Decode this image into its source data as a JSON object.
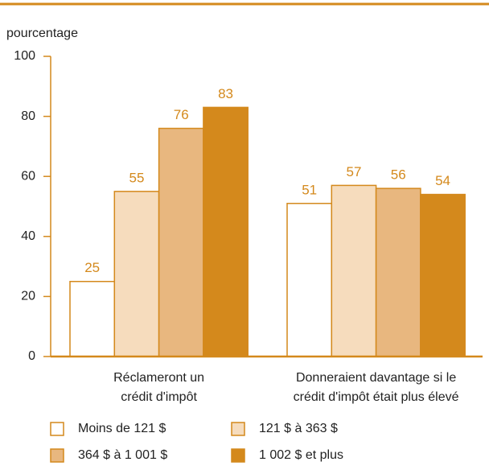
{
  "chart_data": {
    "type": "bar",
    "y_label": "pourcentage",
    "categories": [
      [
        "Réclameront un",
        "crédit d'impôt"
      ],
      [
        "Donneraient davantage si le",
        "crédit d'impôt était plus élevé"
      ]
    ],
    "series": [
      {
        "name": "Moins de 121 $",
        "color": "#ffffff",
        "values": [
          25,
          51
        ]
      },
      {
        "name": "121 $ à 363 $",
        "color": "#f6dcbd",
        "values": [
          55,
          57
        ]
      },
      {
        "name": "364 $ à 1 001 $",
        "color": "#e8b77f",
        "values": [
          76,
          56
        ]
      },
      {
        "name": "1 002 $ et plus",
        "color": "#d4891c",
        "values": [
          83,
          54
        ]
      }
    ],
    "ylim": [
      0,
      100
    ],
    "yticks": [
      0,
      20,
      40,
      60,
      80,
      100
    ]
  }
}
